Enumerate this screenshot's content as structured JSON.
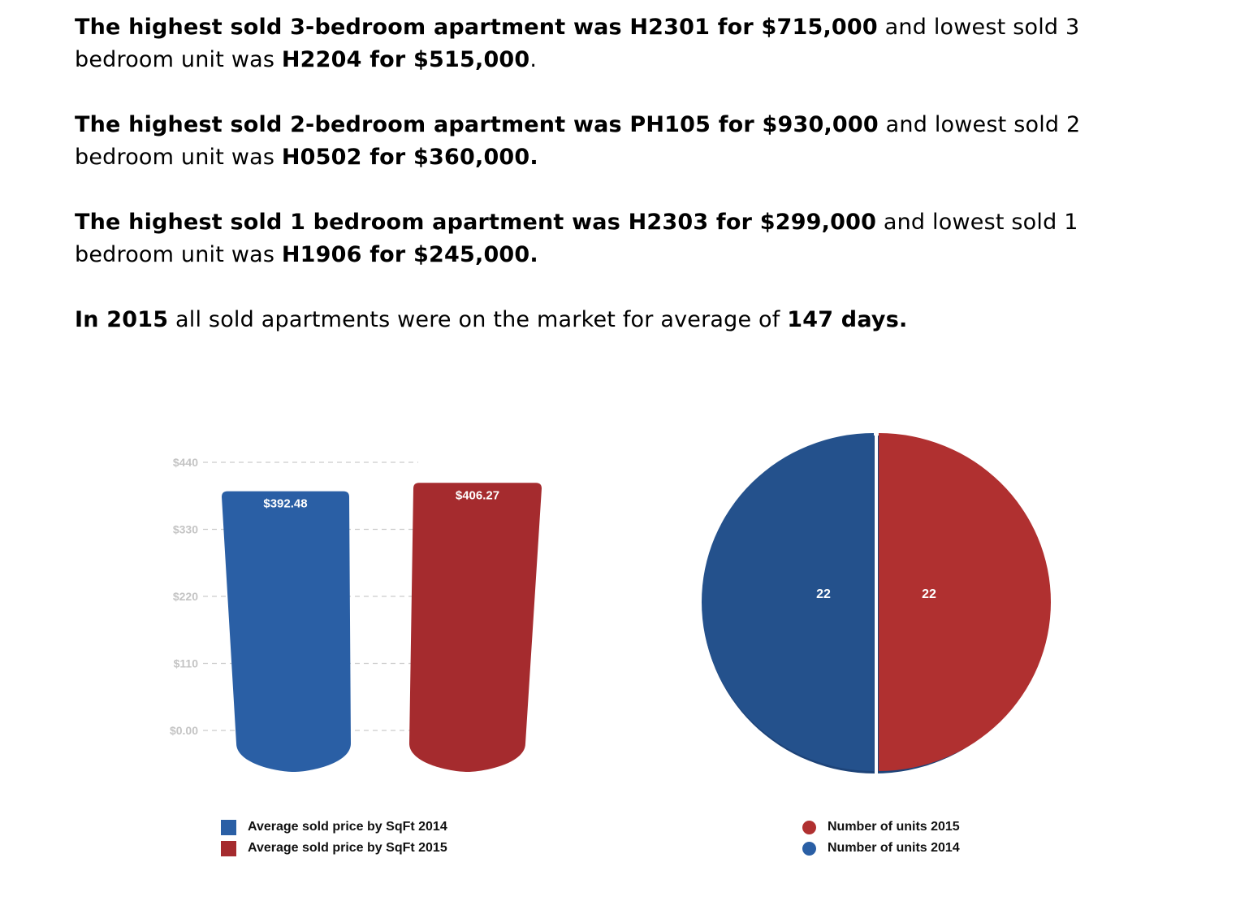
{
  "summary": {
    "p1": {
      "bold": "The highest sold 3-bedroom apartment was H2301 for $715,000",
      "mid": " and lowest sold 3 bedroom unit was ",
      "bold2": "H2204 for $515,000",
      "tail": "."
    },
    "p2": {
      "bold": "The highest sold 2-bedroom apartment was PH105 for $930,000",
      "mid": " and lowest sold 2 bedroom unit was ",
      "bold2": "H0502 for $360,000.",
      "tail": ""
    },
    "p3": {
      "bold": "The highest sold 1 bedroom apartment was H2303 for $299,000",
      "mid": " and lowest sold 1 bedroom unit was ",
      "bold2": "H1906 for $245,000.",
      "tail": ""
    },
    "p4": {
      "bold": "In 2015",
      "mid": " all sold apartments were on the market for average of ",
      "bold2": "147 days.",
      "tail": ""
    }
  },
  "colors": {
    "blue": "#2a5fa5",
    "blue_dark": "#24518c",
    "red": "#a52b2e",
    "red_pie": "#b03030",
    "grid": "#cccccc",
    "tick": "#c4c4c4"
  },
  "chart_data": [
    {
      "type": "bar",
      "categories": [
        "Average sold price by SqFt 2014",
        "Average sold price by SqFt 2015"
      ],
      "values": [
        392.48,
        406.27
      ],
      "value_labels": [
        "$392.48",
        "$406.27"
      ],
      "colors": [
        "#2a5fa5",
        "#a52b2e"
      ],
      "yticks": [
        "$0.00",
        "$110",
        "$220",
        "$330",
        "$440"
      ],
      "ytick_values": [
        0,
        110,
        220,
        330,
        440
      ],
      "ylim": [
        0,
        440
      ],
      "grid": true,
      "legend": [
        {
          "label": "Average sold price by SqFt 2014",
          "color": "#2a5fa5"
        },
        {
          "label": "Average sold price by SqFt 2015",
          "color": "#a52b2e"
        }
      ],
      "legend_position": "bottom"
    },
    {
      "type": "pie",
      "slices": [
        {
          "name": "Number of units 2015",
          "value": 22,
          "label": "22",
          "color": "#b03030"
        },
        {
          "name": "Number of units 2014",
          "value": 22,
          "label": "22",
          "color": "#24518c"
        }
      ],
      "legend": [
        {
          "label": "Number of units 2015",
          "color": "#b03030"
        },
        {
          "label": "Number of units 2014",
          "color": "#2a5fa5"
        }
      ],
      "legend_position": "bottom"
    }
  ]
}
